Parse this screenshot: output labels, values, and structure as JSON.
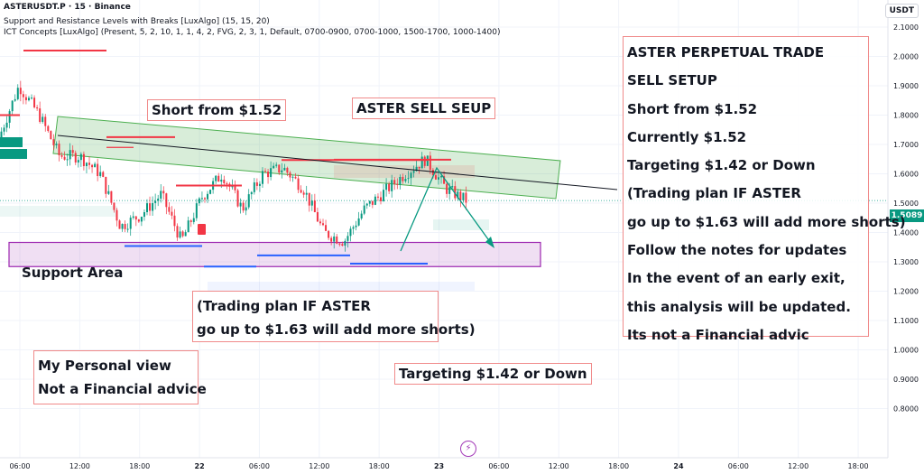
{
  "header": {
    "symbol": "ASTERUSDT.P · 15 · Binance",
    "indicator1": "Support and Resistance Levels with Breaks [LuxAlgo] (15, 15, 20)",
    "indicator2": "ICT Concepts [LuxAlgo] (Present, 5, 2, 10, 1, 1, 4, 2, FVG, 2, 3, 1, Default, 0700-0900, 0700-1000, 1500-1700, 1000-1400)"
  },
  "currency": "USDT",
  "last_price": "1.5089",
  "colors": {
    "bull": "#089981",
    "bear": "#f23645",
    "channel": "#4caf50",
    "support": "#9c27b0",
    "note_border": "#f08a8a"
  },
  "icons": {
    "replay": "lightning-icon"
  },
  "notes": {
    "short_from": "Short from $1.52",
    "sell_setup": "ASTER SELL SEUP",
    "support_area": "Support Area",
    "plan_line1": "(Trading plan IF ASTER",
    "plan_line2": "go up to $1.63 will add more shorts)",
    "personal_view": "My Personal view",
    "not_advice": "Not a Financial advice",
    "targeting": "Targeting $1.42 or Down",
    "summary": [
      "ASTER PERPETUAL TRADE",
      "SELL SETUP",
      "Short from $1.52",
      "Currently $1.52",
      "Targeting $1.42 or Down",
      "(Trading plan IF ASTER",
      "go up to $1.63 will add more shorts)",
      "Follow the notes for updates",
      "In the event of an early exit,",
      "this analysis will be updated.",
      "Its not a Financial advic"
    ]
  },
  "chart_data": {
    "type": "candlestick",
    "y_axis": {
      "range": [
        0.77,
        2.12
      ],
      "ticks": [
        "2.1000",
        "2.0000",
        "1.9000",
        "1.8000",
        "1.7000",
        "1.6000",
        "1.5000",
        "1.4000",
        "1.3000",
        "1.2000",
        "1.1000",
        "1.0000",
        "0.9000",
        "0.8000"
      ]
    },
    "x_axis": {
      "ticks": [
        "06:00",
        "12:00",
        "18:00",
        "22",
        "06:00",
        "12:00",
        "18:00",
        "23",
        "06:00",
        "12:00",
        "18:00",
        "24",
        "06:00",
        "12:00",
        "18:00"
      ]
    },
    "approx_close_path": [
      [
        "06:00",
        1.72
      ],
      [
        "07:30",
        1.9
      ],
      [
        "08:30",
        1.8
      ],
      [
        "10:00",
        1.66
      ],
      [
        "12:00",
        1.66
      ],
      [
        "15:00",
        1.6
      ],
      [
        "17:00",
        1.42
      ],
      [
        "18:30",
        1.46
      ],
      [
        "22 00:00",
        1.53
      ],
      [
        "22 01:00",
        1.37
      ],
      [
        "22 03:30",
        1.52
      ],
      [
        "22 06:00",
        1.6
      ],
      [
        "22 07:00",
        1.48
      ],
      [
        "22 09:00",
        1.6
      ],
      [
        "22 11:00",
        1.62
      ],
      [
        "22 13:00",
        1.55
      ],
      [
        "22 15:00",
        1.4
      ],
      [
        "22 17:30",
        1.37
      ],
      [
        "22 19:00",
        1.48
      ],
      [
        "22 22:00",
        1.54
      ],
      [
        "23 00:00",
        1.6
      ],
      [
        "23 00:30",
        1.65
      ],
      [
        "23 02:00",
        1.55
      ],
      [
        "23 03:30",
        1.51
      ]
    ],
    "trade_plan": {
      "entry": 1.52,
      "add_shorts_at": 1.63,
      "target": 1.42,
      "support_area": [
        1.29,
        1.36
      ]
    },
    "last_price": 1.5089
  }
}
